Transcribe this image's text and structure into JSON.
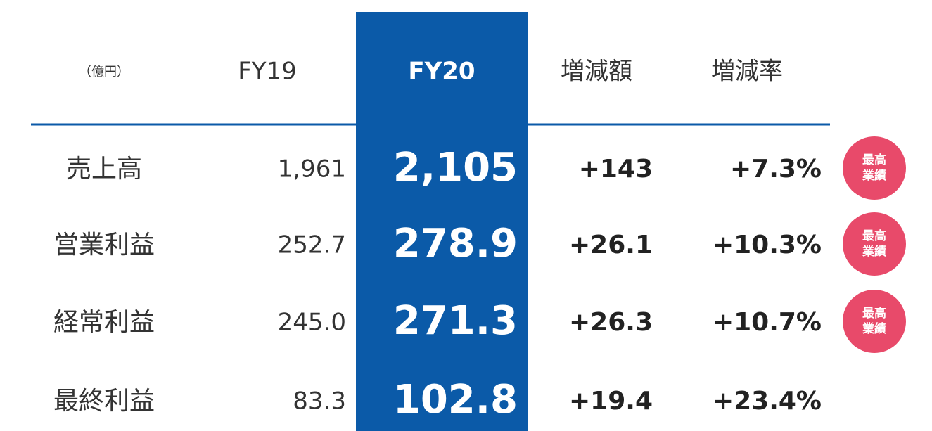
{
  "table": {
    "header": [
      "（億円）",
      "FY19",
      "FY20",
      "増減額",
      "増減率"
    ],
    "rows": [
      {
        "label": "売上高",
        "fy19": "1,961",
        "fy20": "2,105",
        "change": "+143",
        "rate": "+7.3%",
        "badge": [
          "最高",
          "業績"
        ]
      },
      {
        "label": "営業利益",
        "fy19": "252.7",
        "fy20": "278.9",
        "change": "+26.1",
        "rate": "+10.3%",
        "badge": [
          "最高",
          "業績"
        ]
      },
      {
        "label": "経常利益",
        "fy19": "245.0",
        "fy20": "271.3",
        "change": "+26.3",
        "rate": "+10.7%",
        "badge": [
          "最高",
          "業績"
        ]
      },
      {
        "label": "最終利益",
        "fy19": "83.3",
        "fy20": "102.8",
        "change": "+19.4",
        "rate": "+23.4%"
      }
    ]
  }
}
